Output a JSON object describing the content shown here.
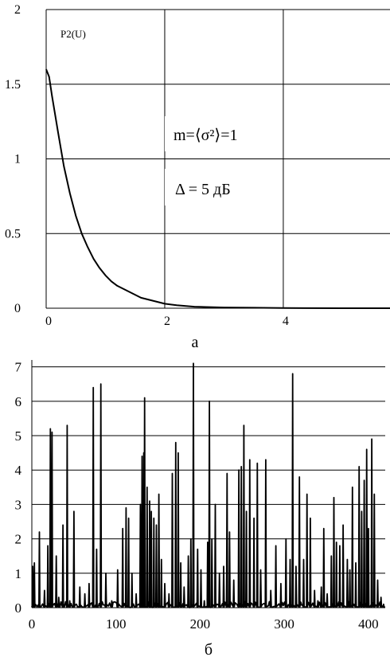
{
  "chart_data": [
    {
      "type": "line",
      "panel_label": "а",
      "series_label": "P2(U)",
      "xlim": [
        0,
        5.8
      ],
      "ylim": [
        0,
        2
      ],
      "x_ticks": [
        "0",
        "2",
        "4"
      ],
      "x_tick_values": [
        0,
        2,
        4
      ],
      "y_ticks": [
        "0",
        "0.5",
        "1",
        "1.5",
        "2"
      ],
      "y_tick_values": [
        0,
        0.5,
        1,
        1.5,
        2
      ],
      "grid": true,
      "annotations": [
        {
          "text": "m=⟨σ²⟩=1",
          "at": [
            2.6,
            1.25
          ]
        },
        {
          "text": "Δ = 5 дБ",
          "at": [
            2.6,
            0.78
          ]
        }
      ],
      "series": [
        {
          "x": [
            0,
            0.05,
            0.1,
            0.2,
            0.3,
            0.4,
            0.5,
            0.6,
            0.7,
            0.8,
            0.9,
            1.0,
            1.1,
            1.2,
            1.4,
            1.6,
            1.8,
            2.0,
            2.2,
            2.5,
            3.0,
            3.5,
            4.0,
            5.0,
            5.8
          ],
          "y": [
            1.6,
            1.55,
            1.42,
            1.18,
            0.95,
            0.77,
            0.62,
            0.5,
            0.41,
            0.33,
            0.27,
            0.22,
            0.18,
            0.15,
            0.11,
            0.07,
            0.05,
            0.03,
            0.02,
            0.01,
            0.005,
            0.003,
            0.001,
            0.0,
            0.0
          ]
        }
      ]
    },
    {
      "type": "line",
      "panel_label": "б",
      "xlim": [
        0,
        420
      ],
      "ylim": [
        0,
        7.2
      ],
      "x_ticks": [
        "0",
        "100",
        "200",
        "300",
        "400"
      ],
      "x_tick_values": [
        0,
        100,
        200,
        300,
        400
      ],
      "y_ticks": [
        "0",
        "1",
        "2",
        "3",
        "4",
        "5",
        "6",
        "7"
      ],
      "y_tick_values": [
        0,
        1,
        2,
        3,
        4,
        5,
        6,
        7
      ],
      "grid": true,
      "series": [
        {
          "peaks": [
            [
              1,
              1.2
            ],
            [
              3,
              1.3
            ],
            [
              9,
              2.2
            ],
            [
              15,
              0.5
            ],
            [
              19,
              1.8
            ],
            [
              22,
              5.2
            ],
            [
              24,
              5.1
            ],
            [
              29,
              1.5
            ],
            [
              32,
              0.3
            ],
            [
              37,
              2.4
            ],
            [
              42,
              5.3
            ],
            [
              45,
              0.2
            ],
            [
              50,
              2.8
            ],
            [
              57,
              0.6
            ],
            [
              63,
              0.4
            ],
            [
              68,
              0.7
            ],
            [
              73,
              6.4
            ],
            [
              77,
              1.7
            ],
            [
              82,
              6.5
            ],
            [
              88,
              1.0
            ],
            [
              95,
              0.2
            ],
            [
              102,
              1.1
            ],
            [
              108,
              2.3
            ],
            [
              112,
              2.9
            ],
            [
              115,
              2.6
            ],
            [
              119,
              1.0
            ],
            [
              124,
              0.4
            ],
            [
              129,
              3.0
            ],
            [
              131,
              4.4
            ],
            [
              133,
              4.5
            ],
            [
              134,
              6.1
            ],
            [
              137,
              3.5
            ],
            [
              140,
              3.1
            ],
            [
              142,
              2.8
            ],
            [
              145,
              2.6
            ],
            [
              148,
              2.4
            ],
            [
              151,
              3.3
            ],
            [
              154,
              1.4
            ],
            [
              158,
              0.7
            ],
            [
              163,
              0.4
            ],
            [
              167,
              3.9
            ],
            [
              171,
              4.8
            ],
            [
              174,
              4.5
            ],
            [
              177,
              1.3
            ],
            [
              181,
              0.6
            ],
            [
              186,
              1.5
            ],
            [
              189,
              2.0
            ],
            [
              192,
              7.1
            ],
            [
              197,
              1.7
            ],
            [
              201,
              1.1
            ],
            [
              205,
              0.2
            ],
            [
              209,
              1.9
            ],
            [
              211,
              6.0
            ],
            [
              214,
              2.0
            ],
            [
              218,
              3.0
            ],
            [
              223,
              1.0
            ],
            [
              228,
              1.2
            ],
            [
              232,
              3.9
            ],
            [
              235,
              2.2
            ],
            [
              240,
              0.8
            ],
            [
              246,
              4.0
            ],
            [
              249,
              4.1
            ],
            [
              252,
              5.3
            ],
            [
              255,
              2.8
            ],
            [
              259,
              4.3
            ],
            [
              264,
              2.6
            ],
            [
              268,
              4.2
            ],
            [
              272,
              1.1
            ],
            [
              278,
              4.3
            ],
            [
              284,
              0.5
            ],
            [
              290,
              1.8
            ],
            [
              296,
              0.7
            ],
            [
              302,
              2.0
            ],
            [
              307,
              1.4
            ],
            [
              310,
              6.8
            ],
            [
              314,
              1.2
            ],
            [
              318,
              3.8
            ],
            [
              323,
              1.4
            ],
            [
              327,
              3.3
            ],
            [
              331,
              2.6
            ],
            [
              336,
              0.5
            ],
            [
              340,
              0.2
            ],
            [
              344,
              0.6
            ],
            [
              347,
              2.3
            ],
            [
              351,
              0.4
            ],
            [
              356,
              1.5
            ],
            [
              359,
              3.2
            ],
            [
              362,
              1.9
            ],
            [
              366,
              1.8
            ],
            [
              370,
              2.4
            ],
            [
              375,
              1.4
            ],
            [
              378,
              1.1
            ],
            [
              381,
              3.5
            ],
            [
              385,
              1.3
            ],
            [
              389,
              4.1
            ],
            [
              392,
              2.8
            ],
            [
              395,
              3.7
            ],
            [
              398,
              4.6
            ],
            [
              400,
              2.3
            ],
            [
              404,
              4.9
            ],
            [
              407,
              3.3
            ],
            [
              411,
              0.8
            ],
            [
              415,
              0.3
            ],
            [
              418,
              0.1
            ]
          ]
        }
      ]
    }
  ]
}
